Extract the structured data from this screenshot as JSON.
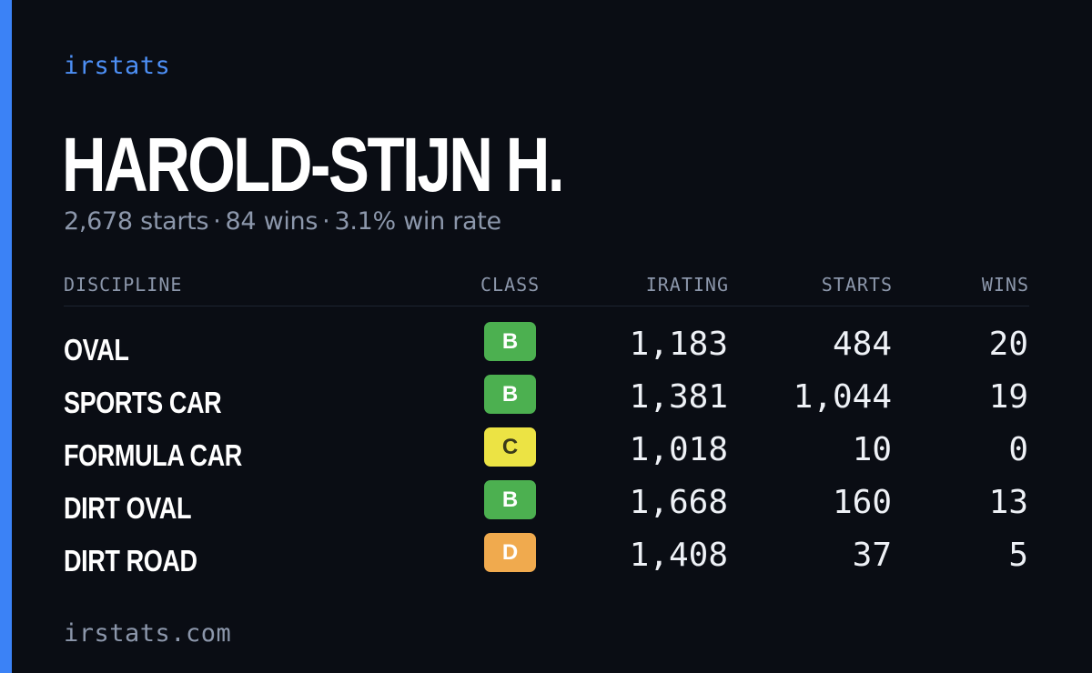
{
  "brand": "irstats",
  "player": {
    "name": "HAROLD-STIJN H."
  },
  "summary": {
    "starts": "2,678 starts",
    "wins": "84 wins",
    "win_rate": "3.1% win rate",
    "separator": "·"
  },
  "table": {
    "headers": {
      "discipline": "DISCIPLINE",
      "class": "CLASS",
      "irating": "IRATING",
      "starts": "STARTS",
      "wins": "WINS"
    },
    "rows": [
      {
        "discipline": "OVAL",
        "class": "B",
        "class_color": "#4cb050",
        "class_text_color": "#ffffff",
        "irating": "1,183",
        "starts": "484",
        "wins": "20"
      },
      {
        "discipline": "SPORTS CAR",
        "class": "B",
        "class_color": "#4cb050",
        "class_text_color": "#ffffff",
        "irating": "1,381",
        "starts": "1,044",
        "wins": "19"
      },
      {
        "discipline": "FORMULA CAR",
        "class": "C",
        "class_color": "#ece344",
        "class_text_color": "#3a3a1a",
        "irating": "1,018",
        "starts": "10",
        "wins": "0"
      },
      {
        "discipline": "DIRT OVAL",
        "class": "B",
        "class_color": "#4cb050",
        "class_text_color": "#ffffff",
        "irating": "1,668",
        "starts": "160",
        "wins": "13"
      },
      {
        "discipline": "DIRT ROAD",
        "class": "D",
        "class_color": "#f0aa4e",
        "class_text_color": "#ffffff",
        "irating": "1,408",
        "starts": "37",
        "wins": "5"
      }
    ]
  },
  "footer": {
    "url": "irstats.com"
  },
  "colors": {
    "accent": "#3b82f6",
    "background": "#0a0d14",
    "muted_text": "#8c97ab"
  }
}
